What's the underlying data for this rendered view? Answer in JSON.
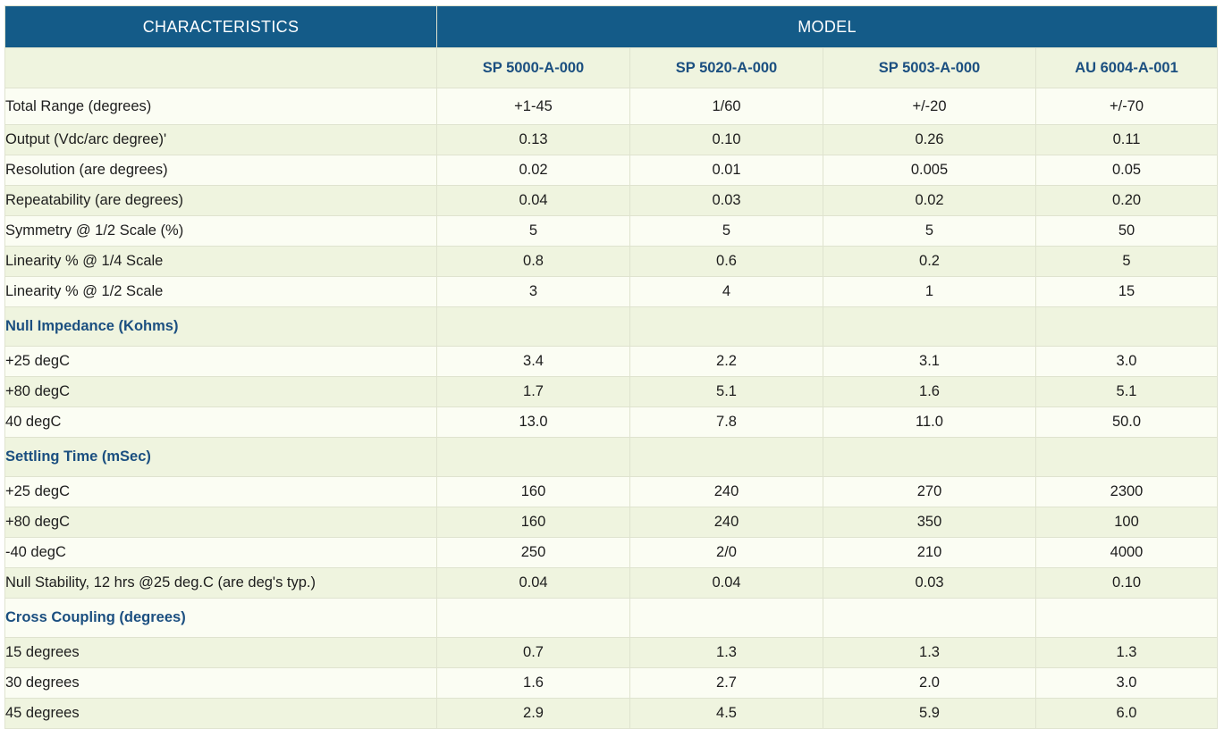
{
  "header": {
    "characteristics": "CHARACTERISTICS",
    "model": "MODEL"
  },
  "models": [
    "SP 5000-A-000",
    "SP 5020-A-000",
    "SP 5003-A-000",
    "AU 6004-A-001"
  ],
  "rows": [
    {
      "type": "data",
      "label": "Total Range (degrees)",
      "values": [
        "+1-45",
        "1/60",
        "+/-20",
        "+/-70"
      ]
    },
    {
      "type": "data",
      "label": "Output (Vdc/arc degree)'",
      "values": [
        "0.13",
        "0.10",
        "0.26",
        "0.11"
      ]
    },
    {
      "type": "data",
      "label": "Resolution (are degrees)",
      "values": [
        "0.02",
        "0.01",
        "0.005",
        "0.05"
      ]
    },
    {
      "type": "data",
      "label": "Repeatability (are degrees)",
      "values": [
        "0.04",
        "0.03",
        "0.02",
        "0.20"
      ]
    },
    {
      "type": "data",
      "label": "Symmetry @ 1/2 Scale (%)",
      "values": [
        "5",
        "5",
        "5",
        "50"
      ]
    },
    {
      "type": "data",
      "label": "Linearity % @ 1/4 Scale",
      "values": [
        "0.8",
        "0.6",
        "0.2",
        "5"
      ]
    },
    {
      "type": "data",
      "label": "Linearity % @ 1/2 Scale",
      "values": [
        "3",
        "4",
        "1",
        "15"
      ]
    },
    {
      "type": "section",
      "label": "Null Impedance (Kohms)"
    },
    {
      "type": "data",
      "label": "+25 degC",
      "values": [
        "3.4",
        "2.2",
        "3.1",
        "3.0"
      ]
    },
    {
      "type": "data",
      "label": "+80 degC",
      "values": [
        "1.7",
        "5.1",
        "1.6",
        "5.1"
      ]
    },
    {
      "type": "data",
      "label": "40 degC",
      "values": [
        "13.0",
        "7.8",
        "11.0",
        "50.0"
      ]
    },
    {
      "type": "section",
      "label": "Settling Time (mSec)"
    },
    {
      "type": "data",
      "label": "+25 degC",
      "values": [
        "160",
        "240",
        "270",
        "2300"
      ]
    },
    {
      "type": "data",
      "label": "+80 degC",
      "values": [
        "160",
        "240",
        "350",
        "100"
      ]
    },
    {
      "type": "data",
      "label": "-40 degC",
      "values": [
        "250",
        "2/0",
        "210",
        "4000"
      ]
    },
    {
      "type": "data",
      "label": "Null Stability, 12 hrs @25 deg.C (are deg's typ.)",
      "values": [
        "0.04",
        "0.04",
        "0.03",
        "0.10"
      ]
    },
    {
      "type": "section",
      "label": "Cross Coupling (degrees)"
    },
    {
      "type": "data",
      "label": "15 degrees",
      "values": [
        "0.7",
        "1.3",
        "1.3",
        "1.3"
      ]
    },
    {
      "type": "data",
      "label": "30 degrees",
      "values": [
        "1.6",
        "2.7",
        "2.0",
        "3.0"
      ]
    },
    {
      "type": "data",
      "label": "45 degrees",
      "values": [
        "2.9",
        "4.5",
        "5.9",
        "6.0"
      ]
    }
  ]
}
